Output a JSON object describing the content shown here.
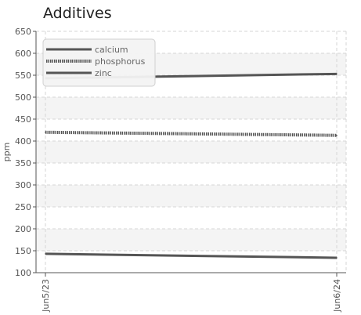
{
  "chart_data": {
    "type": "line",
    "title": "Additives",
    "xlabel": "",
    "ylabel": "ppm",
    "x": [
      "Jun5/23",
      "Jun6/24"
    ],
    "ylim": [
      100,
      650
    ],
    "yticks": [
      100,
      150,
      200,
      250,
      300,
      350,
      400,
      450,
      500,
      550,
      600,
      650
    ],
    "grid": true,
    "legend_position": "top-left",
    "series": [
      {
        "name": "calcium",
        "values": [
          543,
          553
        ],
        "color": "#555555",
        "style": "solid"
      },
      {
        "name": "phosphorus",
        "values": [
          420,
          413
        ],
        "color": "#555555",
        "style": "dotted"
      },
      {
        "name": "zinc",
        "values": [
          143,
          134
        ],
        "color": "#555555",
        "style": "solid-thin"
      }
    ]
  }
}
